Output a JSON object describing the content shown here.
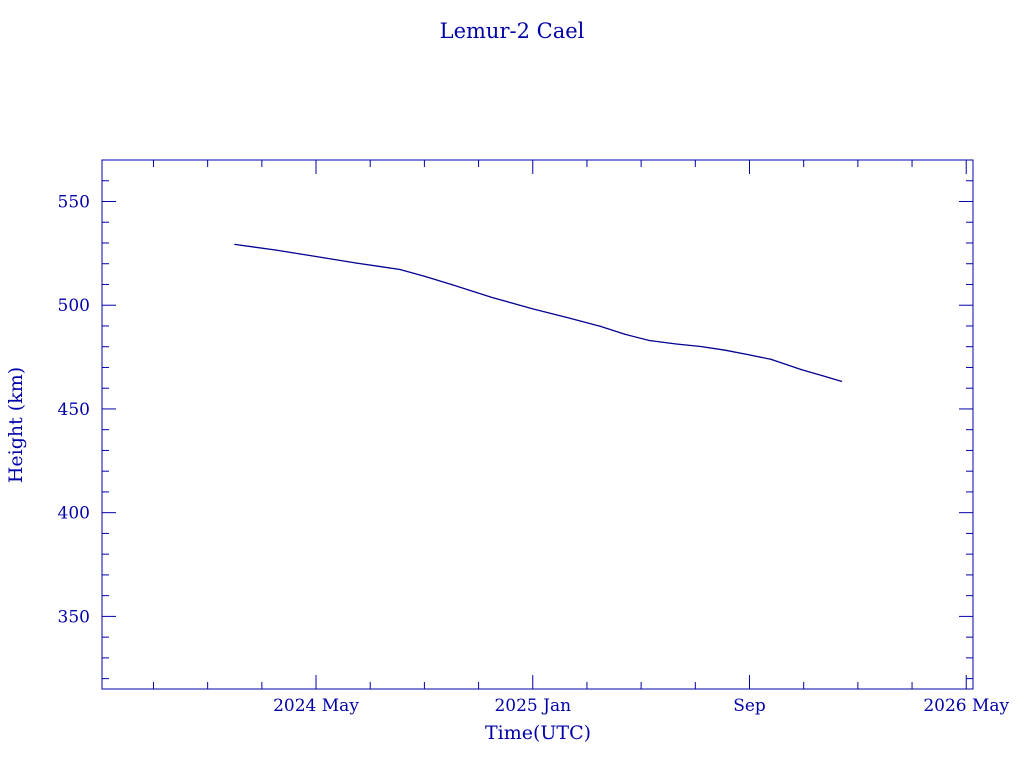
{
  "chart_data": {
    "type": "line",
    "title": "Lemur-2 Cael",
    "xlabel": "Time(UTC)",
    "ylabel": "Height (km)",
    "x_unit": "months since 2024 May",
    "xlim": [
      -7.9,
      24.25
    ],
    "ylim": [
      315,
      570
    ],
    "x_major_ticks": [
      {
        "value": 0,
        "label": "2024 May"
      },
      {
        "value": 8,
        "label": "2025 Jan"
      },
      {
        "value": 16,
        "label": "Sep"
      },
      {
        "value": 24,
        "label": "2026 May"
      }
    ],
    "x_minor_step": 2,
    "y_major_ticks": [
      350,
      400,
      450,
      500,
      550
    ],
    "y_minor_step": 10,
    "grid": false,
    "color": "#000090",
    "series": [
      {
        "name": "Height",
        "x": [
          -3.0,
          -1.5,
          0,
          1.5,
          3.1,
          4.0,
          5.0,
          6.5,
          8.0,
          9.3,
          10.5,
          11.4,
          12.3,
          13.3,
          14.2,
          15.1,
          15.9,
          16.8,
          17.9,
          18.7,
          19.4
        ],
        "y": [
          529.3,
          526.6,
          523.5,
          520.3,
          517.2,
          514.0,
          510.0,
          503.7,
          498.2,
          494.0,
          489.8,
          486.0,
          483.0,
          481.3,
          480.1,
          478.3,
          476.3,
          473.9,
          469.0,
          466.0,
          463.3
        ]
      }
    ]
  }
}
